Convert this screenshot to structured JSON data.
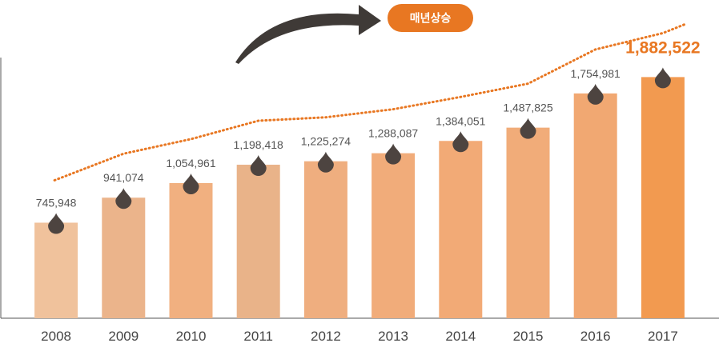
{
  "badge": {
    "label": "매년상승",
    "color": "#e87722"
  },
  "chart_data": {
    "type": "bar",
    "categories": [
      "2008",
      "2009",
      "2010",
      "2011",
      "2012",
      "2013",
      "2014",
      "2015",
      "2016",
      "2017"
    ],
    "values": [
      745948,
      941074,
      1054961,
      1198418,
      1225274,
      1288087,
      1384051,
      1487825,
      1754981,
      1882522
    ],
    "value_labels": [
      "745,948",
      "941,074",
      "1,054,961",
      "1,198,418",
      "1,225,274",
      "1,288,087",
      "1,384,051",
      "1,487,825",
      "1,754,981",
      "1,882,522"
    ],
    "highlight_index": 9,
    "title": "",
    "xlabel": "",
    "ylabel": "",
    "ylim": [
      0,
      1900000
    ],
    "grid": false,
    "legend": "none",
    "bar_colors": [
      "#f0c29c",
      "#ebb48b",
      "#f1b080",
      "#e9b389",
      "#efae7f",
      "#f1ac7a",
      "#f2aa76",
      "#f1ac79",
      "#f1a872",
      "#f29a50"
    ],
    "marker_icon": "drop-icon",
    "marker_color": "#4d4440",
    "trend_line_color": "#e87722",
    "arrow_color": "#3f3a37"
  }
}
